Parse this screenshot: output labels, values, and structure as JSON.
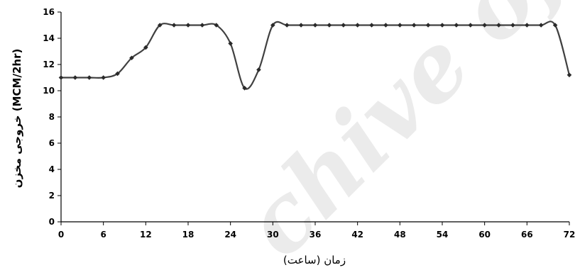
{
  "chart_data": {
    "type": "line",
    "title": "",
    "xlabel": "زمان (ساعت)",
    "ylabel": "خروجی مخزن (MCM/2hr)",
    "xlim": [
      0,
      72
    ],
    "ylim": [
      0,
      16
    ],
    "x_ticks": [
      0,
      6,
      12,
      18,
      24,
      30,
      36,
      42,
      48,
      54,
      60,
      66,
      72
    ],
    "y_ticks": [
      0,
      2,
      4,
      6,
      8,
      10,
      12,
      14,
      16
    ],
    "grid": false,
    "legend": "none",
    "series": [
      {
        "color": "#404040",
        "marker": "diamond",
        "x": [
          0,
          2,
          4,
          6,
          8,
          10,
          12,
          14,
          16,
          18,
          20,
          22,
          24,
          26,
          28,
          30,
          32,
          34,
          36,
          38,
          40,
          42,
          44,
          46,
          48,
          50,
          52,
          54,
          56,
          58,
          60,
          62,
          64,
          66,
          68,
          70,
          72
        ],
        "y": [
          11.0,
          11.0,
          11.0,
          11.0,
          11.3,
          12.5,
          13.3,
          15.0,
          15.0,
          15.0,
          15.0,
          15.0,
          13.6,
          10.2,
          11.6,
          15.0,
          15.0,
          15.0,
          15.0,
          15.0,
          15.0,
          15.0,
          15.0,
          15.0,
          15.0,
          15.0,
          15.0,
          15.0,
          15.0,
          15.0,
          15.0,
          15.0,
          15.0,
          15.0,
          15.0,
          15.0,
          11.2
        ]
      }
    ]
  },
  "watermark": "chive of"
}
